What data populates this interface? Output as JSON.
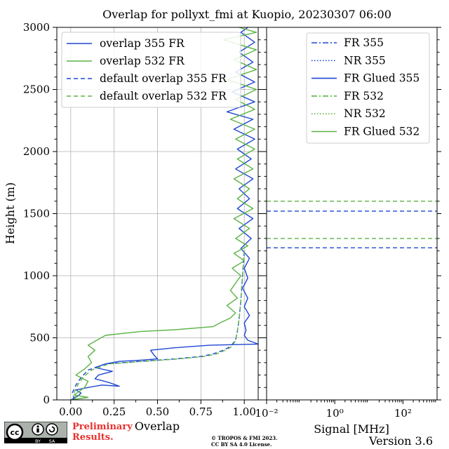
{
  "figure": {
    "title": "Overlap for pollyxt_fmi at Kuopio, 20230307 06:00",
    "prelim_line1": "Preliminary",
    "prelim_line2": "Results.",
    "copyright_line1": "© TROPOS & FMI 2023.",
    "copyright_line2": "CC BY SA 4.0 License.",
    "version": "Version 3.6",
    "cc_badge": {
      "by": "BY",
      "sa": "SA",
      "icon": "cc-by-sa-license-icon"
    }
  },
  "chart_data": [
    {
      "type": "line",
      "panel": "left",
      "xlabel": "Overlap",
      "ylabel": "Height (m)",
      "xlim": [
        -0.08,
        1.08
      ],
      "ylim": [
        0,
        3000
      ],
      "xticks": [
        0.0,
        0.25,
        0.5,
        0.75,
        1.0
      ],
      "xtick_labels": [
        "0.00",
        "0.25",
        "0.50",
        "0.75",
        "1.00"
      ],
      "yticks": [
        0,
        500,
        1000,
        1500,
        2000,
        2500,
        3000
      ],
      "ytick_labels": [
        "0",
        "500",
        "1000",
        "1500",
        "2000",
        "2500",
        "3000"
      ],
      "grid": true,
      "legend": "upper right",
      "series": [
        {
          "name": "overlap 355 FR",
          "color": "#1f47d2",
          "style": "solid",
          "points": [
            [
              0.0,
              0
            ],
            [
              0.04,
              30
            ],
            [
              0.06,
              55
            ],
            [
              0.03,
              80
            ],
            [
              0.1,
              100
            ],
            [
              0.18,
              120
            ],
            [
              0.28,
              110
            ],
            [
              0.22,
              140
            ],
            [
              0.14,
              170
            ],
            [
              0.16,
              200
            ],
            [
              0.24,
              230
            ],
            [
              0.14,
              260
            ],
            [
              0.2,
              290
            ],
            [
              0.28,
              310
            ],
            [
              0.4,
              320
            ],
            [
              0.5,
              330
            ],
            [
              0.48,
              360
            ],
            [
              0.46,
              400
            ],
            [
              0.6,
              420
            ],
            [
              0.8,
              440
            ],
            [
              1.08,
              450
            ],
            [
              1.02,
              480
            ],
            [
              1.0,
              520
            ],
            [
              1.01,
              560
            ],
            [
              1.0,
              620
            ],
            [
              1.03,
              680
            ],
            [
              1.0,
              750
            ],
            [
              1.02,
              820
            ],
            [
              0.99,
              900
            ],
            [
              1.02,
              980
            ],
            [
              1.0,
              1060
            ],
            [
              1.03,
              1140
            ],
            [
              0.98,
              1220
            ],
            [
              1.04,
              1300
            ],
            [
              0.97,
              1380
            ],
            [
              1.05,
              1460
            ],
            [
              0.96,
              1540
            ],
            [
              1.03,
              1620
            ],
            [
              0.97,
              1700
            ],
            [
              1.05,
              1780
            ],
            [
              0.95,
              1860
            ],
            [
              1.04,
              1940
            ],
            [
              0.96,
              2020
            ],
            [
              1.06,
              2100
            ],
            [
              0.94,
              2180
            ],
            [
              1.05,
              2260
            ],
            [
              0.9,
              2320
            ],
            [
              1.06,
              2400
            ],
            [
              0.93,
              2480
            ],
            [
              1.06,
              2560
            ],
            [
              0.95,
              2640
            ],
            [
              1.05,
              2720
            ],
            [
              0.97,
              2800
            ],
            [
              1.06,
              2880
            ],
            [
              0.98,
              2960
            ],
            [
              1.02,
              3000
            ]
          ]
        },
        {
          "name": "overlap 532 FR",
          "color": "#5cb346",
          "style": "solid",
          "points": [
            [
              0.0,
              0
            ],
            [
              0.1,
              20
            ],
            [
              0.02,
              40
            ],
            [
              0.04,
              60
            ],
            [
              0.08,
              100
            ],
            [
              0.1,
              150
            ],
            [
              0.03,
              200
            ],
            [
              0.08,
              250
            ],
            [
              0.12,
              300
            ],
            [
              0.1,
              350
            ],
            [
              0.14,
              400
            ],
            [
              0.1,
              440
            ],
            [
              0.15,
              480
            ],
            [
              0.2,
              520
            ],
            [
              0.4,
              550
            ],
            [
              0.6,
              565
            ],
            [
              0.82,
              590
            ],
            [
              0.86,
              620
            ],
            [
              0.92,
              660
            ],
            [
              0.95,
              700
            ],
            [
              0.9,
              760
            ],
            [
              0.96,
              820
            ],
            [
              0.92,
              880
            ],
            [
              0.95,
              940
            ],
            [
              0.98,
              1000
            ],
            [
              0.93,
              1060
            ],
            [
              1.0,
              1120
            ],
            [
              0.94,
              1180
            ],
            [
              1.02,
              1240
            ],
            [
              0.95,
              1300
            ],
            [
              1.03,
              1380
            ],
            [
              0.94,
              1460
            ],
            [
              1.05,
              1540
            ],
            [
              0.96,
              1620
            ],
            [
              1.03,
              1700
            ],
            [
              0.94,
              1780
            ],
            [
              1.05,
              1860
            ],
            [
              0.96,
              1940
            ],
            [
              1.06,
              2020
            ],
            [
              0.95,
              2100
            ],
            [
              1.06,
              2180
            ],
            [
              0.92,
              2260
            ],
            [
              1.06,
              2340
            ],
            [
              0.95,
              2420
            ],
            [
              1.07,
              2500
            ],
            [
              0.9,
              2580
            ],
            [
              1.07,
              2660
            ],
            [
              0.94,
              2740
            ],
            [
              1.07,
              2820
            ],
            [
              0.88,
              2900
            ],
            [
              1.07,
              2960
            ],
            [
              0.97,
              3000
            ]
          ]
        },
        {
          "name": "default overlap 355 FR",
          "color": "#1f47d2",
          "style": "dashed",
          "points": [
            [
              0.02,
              0
            ],
            [
              0.01,
              60
            ],
            [
              0.03,
              120
            ],
            [
              0.06,
              180
            ],
            [
              0.1,
              240
            ],
            [
              0.2,
              290
            ],
            [
              0.4,
              310
            ],
            [
              0.6,
              330
            ],
            [
              0.75,
              350
            ],
            [
              0.82,
              370
            ],
            [
              0.88,
              400
            ],
            [
              0.92,
              430
            ],
            [
              0.95,
              480
            ],
            [
              0.96,
              550
            ],
            [
              0.97,
              650
            ],
            [
              0.98,
              800
            ],
            [
              0.99,
              1000
            ],
            [
              1.0,
              1200
            ]
          ]
        },
        {
          "name": "default overlap 532 FR",
          "color": "#5cb346",
          "style": "dashed",
          "points": [
            [
              0.03,
              0
            ],
            [
              0.02,
              60
            ],
            [
              0.04,
              120
            ],
            [
              0.07,
              180
            ],
            [
              0.12,
              240
            ],
            [
              0.22,
              290
            ],
            [
              0.42,
              310
            ],
            [
              0.62,
              330
            ],
            [
              0.77,
              350
            ],
            [
              0.84,
              370
            ],
            [
              0.89,
              400
            ],
            [
              0.93,
              430
            ],
            [
              0.95,
              480
            ],
            [
              0.96,
              550
            ],
            [
              0.97,
              650
            ],
            [
              0.98,
              800
            ],
            [
              0.99,
              1000
            ],
            [
              1.0,
              1200
            ]
          ]
        }
      ]
    },
    {
      "type": "line",
      "panel": "right",
      "xlabel": "Signal [MHz]",
      "xscale": "log",
      "xlim": [
        0.01,
        1000
      ],
      "xticks": [
        0.01,
        1,
        100
      ],
      "xtick_labels": [
        "10⁻²",
        "10⁰",
        "10²"
      ],
      "ylim": [
        0,
        3000
      ],
      "grid": false,
      "legend": "upper right",
      "legend_entries": [
        {
          "name": "FR 355",
          "color": "#1f47d2",
          "style": "dashdot"
        },
        {
          "name": "NR 355",
          "color": "#1f47d2",
          "style": "dotted"
        },
        {
          "name": "FR Glued 355",
          "color": "#1f47d2",
          "style": "solid"
        },
        {
          "name": "FR 532",
          "color": "#5cb346",
          "style": "dashdot"
        },
        {
          "name": "NR 532",
          "color": "#5cb346",
          "style": "dotted"
        },
        {
          "name": "FR Glued 532",
          "color": "#5cb346",
          "style": "solid"
        }
      ],
      "hlines": [
        {
          "y": 1225,
          "color": "#1f47d2",
          "style": "dashed"
        },
        {
          "y": 1520,
          "color": "#1f47d2",
          "style": "dashed"
        },
        {
          "y": 1300,
          "color": "#5cb346",
          "style": "dashed"
        },
        {
          "y": 1600,
          "color": "#5cb346",
          "style": "dashed"
        }
      ]
    }
  ]
}
